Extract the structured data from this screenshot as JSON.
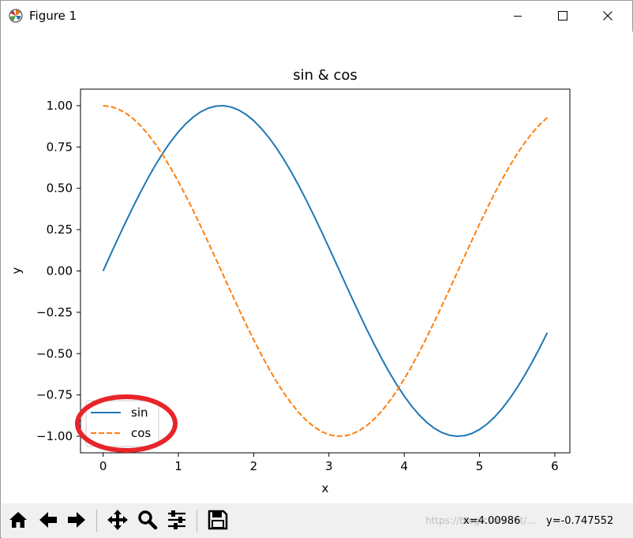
{
  "window": {
    "title": "Figure 1",
    "icons": {
      "app": "matplotlib-logo-icon",
      "minimize": "minimize-icon",
      "maximize": "maximize-icon",
      "close": "close-icon"
    }
  },
  "chart_data": {
    "type": "line",
    "title": "sin & cos",
    "xlabel": "x",
    "ylabel": "y",
    "xlim": [
      -0.3,
      6.2
    ],
    "ylim": [
      -1.1,
      1.1
    ],
    "xticks": [
      0,
      1,
      2,
      3,
      4,
      5,
      6
    ],
    "xtick_labels": [
      "0",
      "1",
      "2",
      "3",
      "4",
      "5",
      "6"
    ],
    "yticks": [
      1.0,
      0.75,
      0.5,
      0.25,
      0.0,
      -0.25,
      -0.5,
      -0.75,
      -1.0
    ],
    "ytick_labels": [
      "1.00",
      "0.75",
      "0.50",
      "0.25",
      "0.00",
      "−0.25",
      "−0.50",
      "−0.75",
      "−1.00"
    ],
    "x_range": [
      0,
      5.9
    ],
    "x_step": 0.1,
    "grid": false,
    "legend_position": "lower-left",
    "series": [
      {
        "name": "sin",
        "function": "sin",
        "color": "#1f77b4",
        "linestyle": "solid"
      },
      {
        "name": "cos",
        "function": "cos",
        "color": "#ff7f0e",
        "linestyle": "dashed"
      }
    ],
    "annotations": [
      {
        "type": "ellipse",
        "target": "legend",
        "color": "#e8252a"
      }
    ]
  },
  "toolbar": {
    "buttons": [
      {
        "name": "home-button",
        "icon": "home-icon"
      },
      {
        "name": "back-button",
        "icon": "arrow-left-icon"
      },
      {
        "name": "forward-button",
        "icon": "arrow-right-icon"
      },
      {
        "name": "pan-button",
        "icon": "move-icon"
      },
      {
        "name": "zoom-button",
        "icon": "zoom-icon"
      },
      {
        "name": "configure-subplots-button",
        "icon": "sliders-icon"
      },
      {
        "name": "save-button",
        "icon": "save-icon"
      }
    ],
    "coords_x": "x=4.00986",
    "coords_y": "y=-0.747552",
    "watermark": "https://blog.csdn.net/..."
  }
}
